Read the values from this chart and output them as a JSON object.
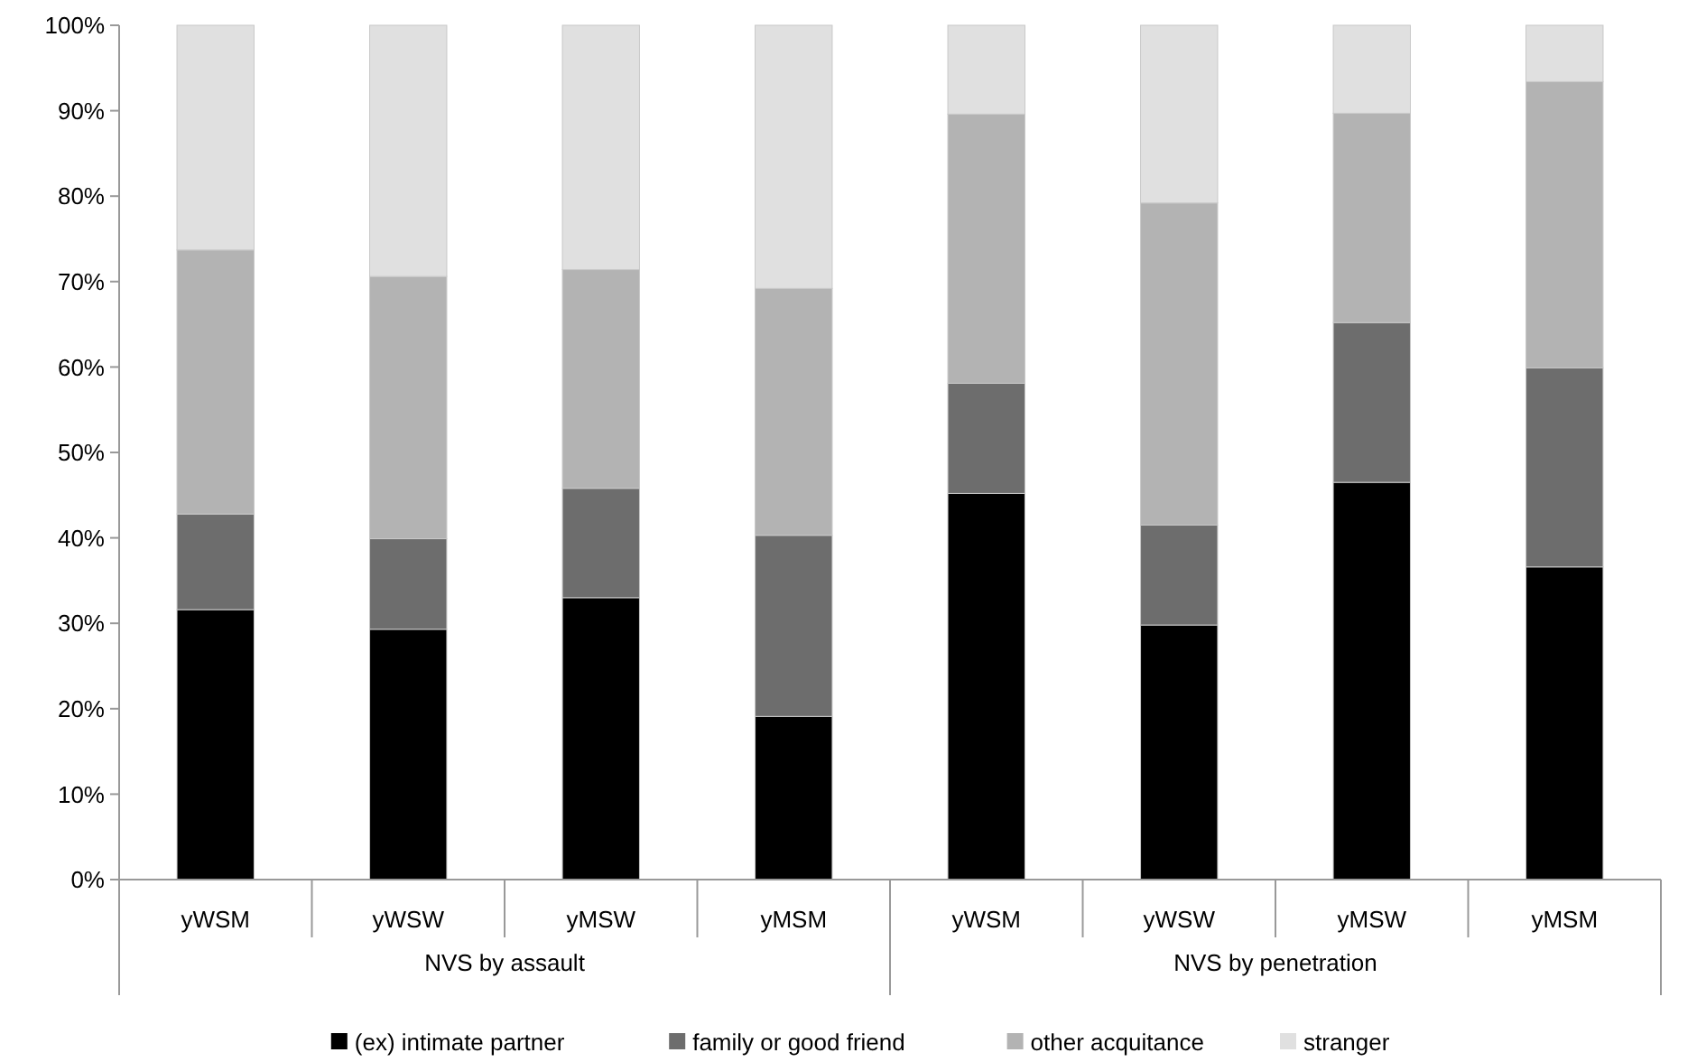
{
  "chart_data": {
    "type": "bar",
    "stacked": true,
    "categories": [
      "yWSM",
      "yWSW",
      "yMSW",
      "yMSM",
      "yWSM",
      "yWSW",
      "yMSW",
      "yMSM"
    ],
    "series": [
      {
        "name": "(ex) intimate partner",
        "color": "#000000",
        "values": [
          31.6,
          29.3,
          33.0,
          19.1,
          45.2,
          29.8,
          46.5,
          36.6
        ]
      },
      {
        "name": "family or good friend",
        "color": "#6d6d6d",
        "values": [
          11.2,
          10.6,
          12.8,
          21.2,
          12.9,
          11.7,
          18.7,
          23.3
        ]
      },
      {
        "name": "other acquitance",
        "color": "#b3b3b3",
        "values": [
          30.9,
          30.7,
          25.6,
          28.9,
          31.5,
          37.7,
          24.5,
          33.5
        ]
      },
      {
        "name": "stranger",
        "color": "#e0e0e0",
        "values": [
          26.3,
          29.4,
          28.6,
          30.8,
          10.4,
          20.8,
          10.3,
          6.6
        ]
      }
    ],
    "ylim": [
      0,
      100
    ],
    "yticks": [
      {
        "value": 0,
        "label": "0%"
      },
      {
        "value": 10,
        "label": "10%"
      },
      {
        "value": 20,
        "label": "20%"
      },
      {
        "value": 30,
        "label": "30%"
      },
      {
        "value": 40,
        "label": "40%"
      },
      {
        "value": 50,
        "label": "50%"
      },
      {
        "value": 60,
        "label": "60%"
      },
      {
        "value": 70,
        "label": "70%"
      },
      {
        "value": 80,
        "label": "80%"
      },
      {
        "value": 90,
        "label": "90%"
      },
      {
        "value": 100,
        "label": "100%"
      }
    ],
    "annotations": [
      "NVS by assault",
      "NVS by penetration"
    ],
    "grid": false,
    "legend": "bottom"
  }
}
